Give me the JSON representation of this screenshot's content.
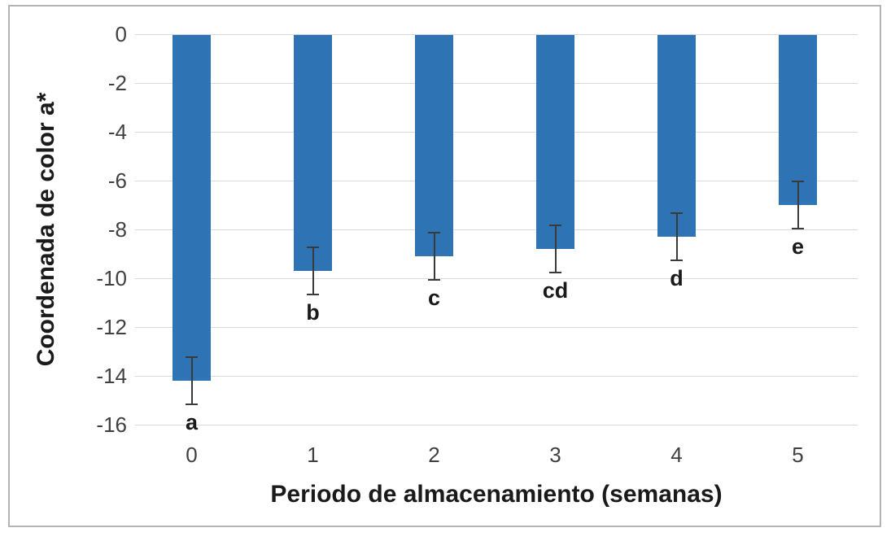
{
  "chart_data": {
    "type": "bar",
    "title": "",
    "xlabel": "Periodo de almacenamiento (semanas)",
    "ylabel": "Coordenada de color a*",
    "categories": [
      "0",
      "1",
      "2",
      "3",
      "4",
      "5"
    ],
    "values": [
      -14.2,
      -9.7,
      -9.1,
      -8.8,
      -8.3,
      -7.0
    ],
    "error_bars": [
      1.0,
      1.0,
      1.0,
      1.0,
      1.0,
      1.0
    ],
    "sig_labels": [
      "a",
      "b",
      "c",
      "cd",
      "d",
      "e"
    ],
    "y_ticks": [
      0,
      -2,
      -4,
      -6,
      -8,
      -10,
      -12,
      -14,
      -16
    ],
    "ylim": [
      0,
      -16
    ],
    "grid": "horizontal-only",
    "legend": "none",
    "colors": {
      "bar": "#2e74b5",
      "gridline": "#d9d9d9",
      "tick_label": "#404040",
      "axis_title": "#1a1a1a",
      "error_bar": "#3a3a3a",
      "frame_border": "#b3b3b3"
    }
  }
}
